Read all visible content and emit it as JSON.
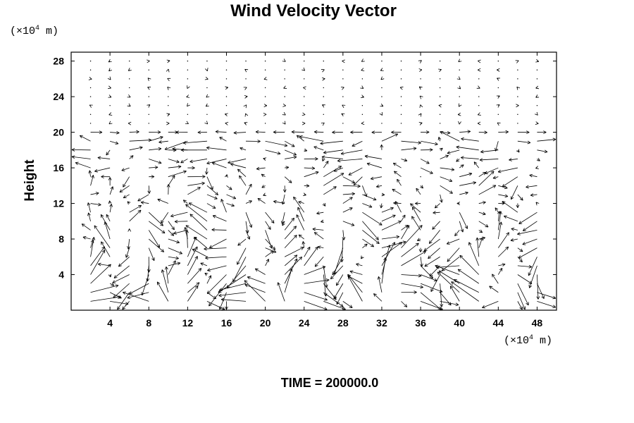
{
  "chart_data": {
    "type": "vector_field",
    "title": "Wind Velocity Vector",
    "ylabel": "Height",
    "unit_prefix": "(×10",
    "unit_exp": "4",
    "unit_suffix": " m)",
    "xlim": [
      0,
      50
    ],
    "ylim": [
      0,
      29
    ],
    "x_ticks": [
      4,
      8,
      12,
      16,
      20,
      24,
      28,
      32,
      36,
      40,
      44,
      48
    ],
    "y_ticks": [
      4,
      8,
      12,
      16,
      20,
      24,
      28
    ],
    "x_tick_labels": [
      "4",
      "8",
      "12",
      "16",
      "20",
      "24",
      "28",
      "32",
      "36",
      "40",
      "44",
      "48"
    ],
    "y_tick_labels": [
      "4",
      "8",
      "12",
      "16",
      "20",
      "24",
      "28"
    ],
    "grid_x_step": 2,
    "grid_y_step": 1,
    "annotation": "TIME = 200000.0",
    "line_color": "#000000",
    "background": "#ffffff"
  }
}
